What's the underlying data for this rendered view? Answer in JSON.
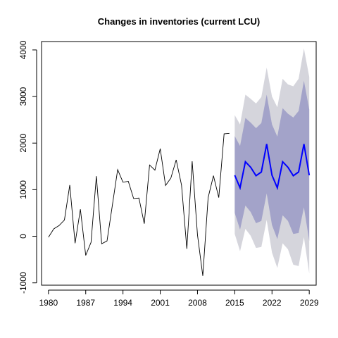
{
  "chart_data": {
    "type": "line",
    "title": "Changes in inventories (current LCU)",
    "xlabel": "",
    "ylabel": "",
    "xlim": [
      1978.7,
      2030.3
    ],
    "ylim": [
      -1050,
      4180
    ],
    "x_ticks": [
      1980,
      1987,
      1994,
      2001,
      2008,
      2015,
      2022,
      2029
    ],
    "y_ticks": [
      -1000,
      0,
      1000,
      2000,
      3000,
      4000
    ],
    "grid": false,
    "colors": {
      "history": "#000000",
      "forecast": "#0000ff",
      "band_95": "#d5d5dc",
      "band_80": "#a3a3c9"
    },
    "history": {
      "x": [
        1980,
        1981,
        1982,
        1983,
        1984,
        1985,
        1986,
        1987,
        1988,
        1989,
        1990,
        1991,
        1992,
        1993,
        1994,
        1995,
        1996,
        1997,
        1998,
        1999,
        2000,
        2001,
        2002,
        2003,
        2004,
        2005,
        2006,
        2007,
        2008,
        2009,
        2010,
        2011,
        2012,
        2013,
        2014
      ],
      "y": [
        -20,
        160,
        230,
        350,
        1100,
        -150,
        580,
        -410,
        -130,
        1290,
        -160,
        -100,
        660,
        1430,
        1160,
        1180,
        810,
        820,
        270,
        1530,
        1420,
        1880,
        1090,
        1250,
        1640,
        1100,
        -270,
        1610,
        30,
        -850,
        830,
        1300,
        830,
        2200,
        2210
      ]
    },
    "forecast": {
      "x": [
        2015,
        2016,
        2017,
        2018,
        2019,
        2020,
        2021,
        2022,
        2023,
        2024,
        2025,
        2026,
        2027,
        2028,
        2029
      ],
      "mean": [
        1310,
        1040,
        1600,
        1480,
        1300,
        1380,
        1980,
        1310,
        1040,
        1600,
        1480,
        1300,
        1380,
        1980,
        1310
      ],
      "lo80": [
        500,
        140,
        660,
        520,
        280,
        330,
        920,
        240,
        -60,
        450,
        330,
        50,
        70,
        620,
        -100
      ],
      "hi80": [
        2150,
        1940,
        2540,
        2440,
        2320,
        2430,
        3040,
        2400,
        2140,
        2750,
        2630,
        2550,
        2690,
        3340,
        2720
      ],
      "lo95": [
        50,
        -320,
        160,
        10,
        -250,
        -230,
        350,
        -350,
        -680,
        -150,
        -280,
        -610,
        -640,
        -20,
        -800
      ],
      "hi95": [
        2600,
        2400,
        3040,
        2950,
        2850,
        2990,
        3620,
        3000,
        2770,
        3380,
        3260,
        3220,
        3380,
        4030,
        3420
      ]
    }
  }
}
